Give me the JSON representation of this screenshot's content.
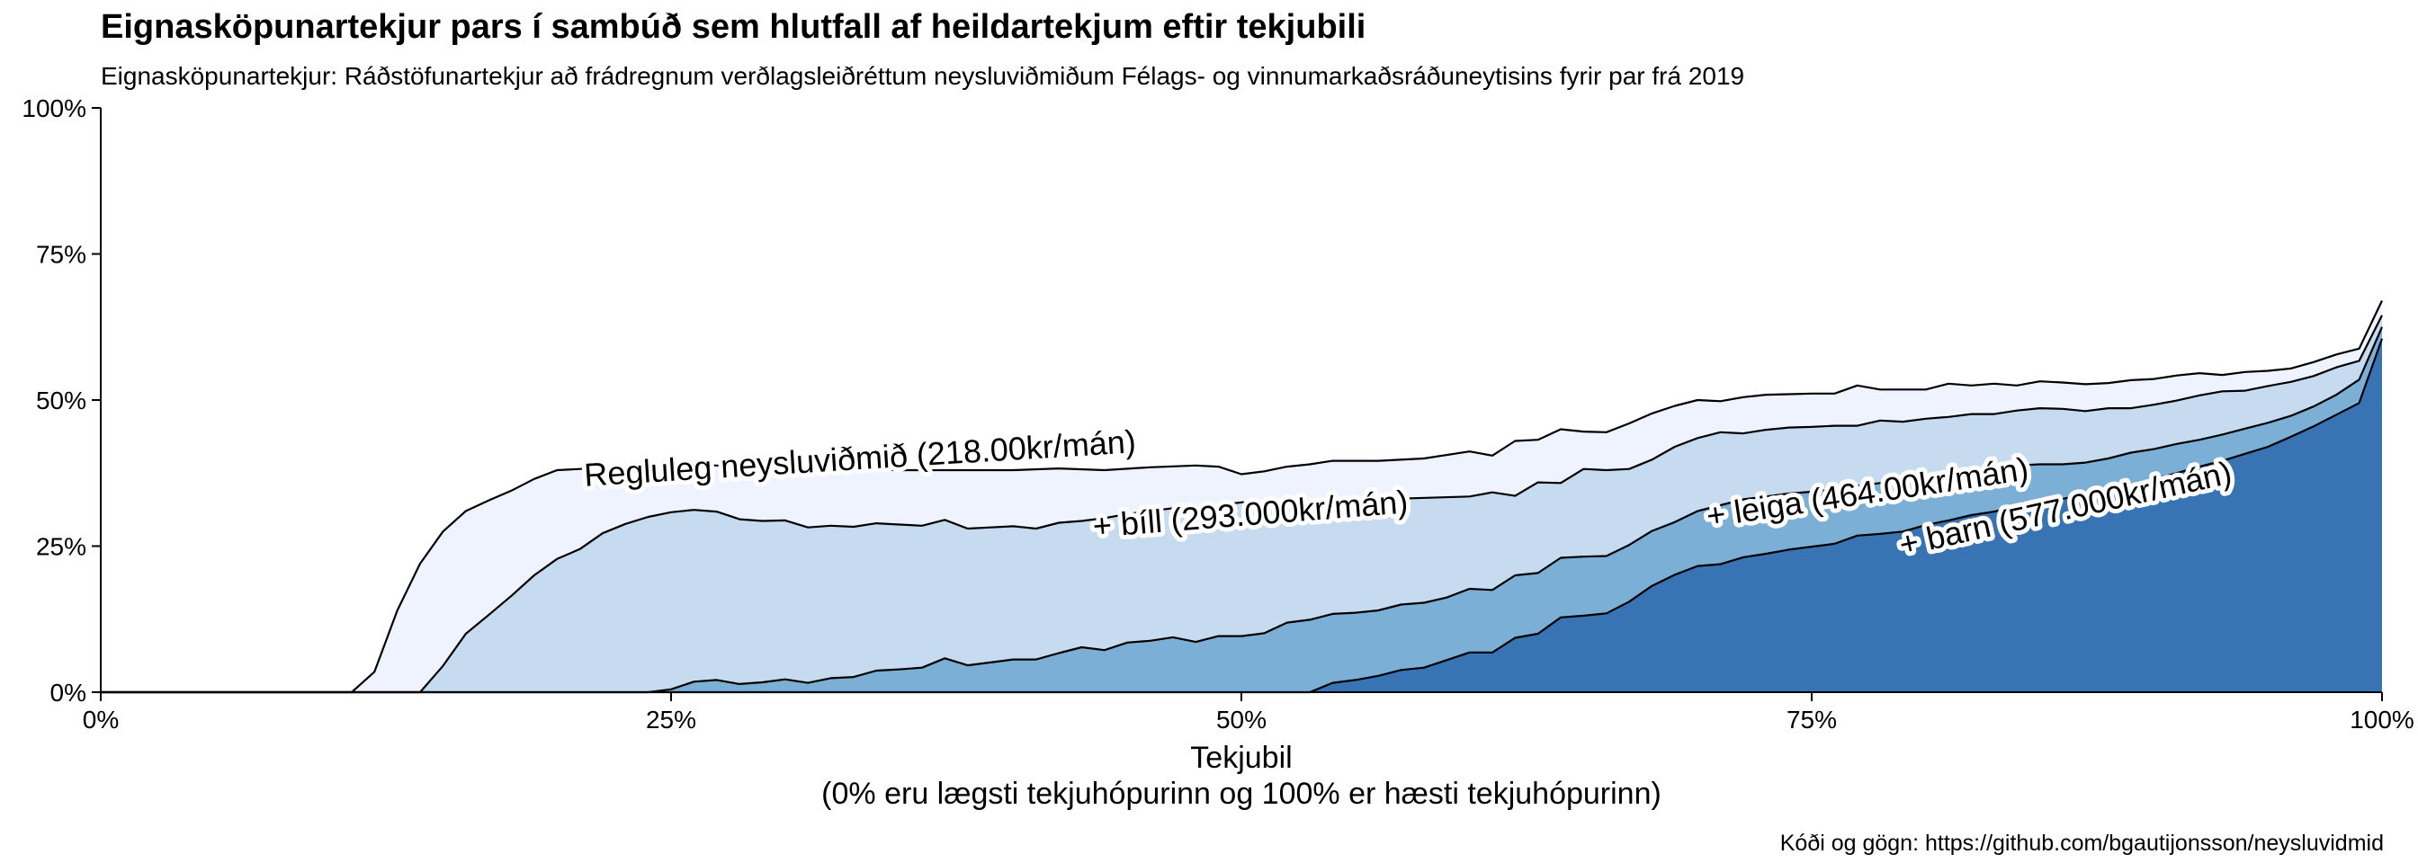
{
  "chart_data": {
    "type": "area",
    "title": "Eignasköpunartekjur pars í sambúð sem hlutfall af heildartekjum eftir tekjubili",
    "subtitle": "Eignasköpunartekjur: Ráðstöfunartekjur að frádregnum verðlagsleiðréttum neysluviðmiðum Félags- og vinnumarkaðsráðuneytisins fyrir par frá 2019",
    "xlabel": "Tekjubil",
    "xlabel_note": "(0% eru lægsti tekjuhópurinn og 100% er hæsti tekjuhópurinn)",
    "caption": "Kóði og gögn: https://github.com/bgautijonsson/neysluvidmid",
    "x_ticks": [
      "0%",
      "25%",
      "50%",
      "75%",
      "100%"
    ],
    "y_ticks": [
      "0%",
      "25%",
      "50%",
      "75%",
      "100%"
    ],
    "xlim": [
      0,
      100
    ],
    "ylim": [
      0,
      100
    ],
    "grid": false,
    "legend": "none",
    "series": [
      {
        "name": "Regluleg neysluviðmið (218.00kr/mán)",
        "color": "#eff3ff",
        "points": [
          [
            0,
            0
          ],
          [
            11,
            0
          ],
          [
            12,
            3.5
          ],
          [
            13,
            14
          ],
          [
            14,
            22
          ],
          [
            15,
            27.5
          ],
          [
            16,
            31
          ],
          [
            17,
            32.8
          ],
          [
            18,
            34.5
          ],
          [
            19,
            36.5
          ],
          [
            20,
            38
          ],
          [
            25,
            39
          ],
          [
            30,
            38.5
          ],
          [
            35,
            38
          ],
          [
            40,
            38
          ],
          [
            42,
            38.3
          ],
          [
            44,
            38
          ],
          [
            46,
            38.5
          ],
          [
            48,
            38.8
          ],
          [
            49,
            38.6
          ],
          [
            50,
            37.3
          ],
          [
            51,
            37.8
          ],
          [
            52,
            38.6
          ],
          [
            53,
            39
          ],
          [
            54,
            39.6
          ],
          [
            56,
            39.6
          ],
          [
            58,
            40
          ],
          [
            60,
            41.2
          ],
          [
            61,
            40.5
          ],
          [
            62,
            43
          ],
          [
            63,
            43.2
          ],
          [
            64,
            45
          ],
          [
            65,
            44.6
          ],
          [
            66,
            44.5
          ],
          [
            67,
            46
          ],
          [
            68,
            47.7
          ],
          [
            69,
            49
          ],
          [
            70,
            50
          ],
          [
            71,
            49.8
          ],
          [
            72,
            50.5
          ],
          [
            73,
            50.9
          ],
          [
            74,
            51
          ],
          [
            75,
            51.1
          ],
          [
            76,
            51.1
          ],
          [
            77,
            52.5
          ],
          [
            78,
            51.8
          ],
          [
            79,
            51.8
          ],
          [
            80,
            51.8
          ],
          [
            81,
            52.8
          ],
          [
            82,
            52.5
          ],
          [
            83,
            52.8
          ],
          [
            84,
            52.5
          ],
          [
            85,
            53.2
          ],
          [
            86,
            53
          ],
          [
            87,
            52.7
          ],
          [
            88,
            52.9
          ],
          [
            89,
            53.4
          ],
          [
            90,
            53.6
          ],
          [
            91,
            54.2
          ],
          [
            92,
            54.6
          ],
          [
            93,
            54.3
          ],
          [
            94,
            54.8
          ],
          [
            95,
            55
          ],
          [
            96,
            55.4
          ],
          [
            97,
            56.5
          ],
          [
            98,
            57.8
          ],
          [
            99,
            58.8
          ],
          [
            100,
            67
          ]
        ]
      },
      {
        "name": "+ bíll (293.000kr/mán)",
        "color": "#c6dbef",
        "points": [
          [
            0,
            0
          ],
          [
            14,
            0
          ],
          [
            15,
            4.5
          ],
          [
            16,
            10
          ],
          [
            17,
            13.2
          ],
          [
            18,
            16.5
          ],
          [
            19,
            20
          ],
          [
            20,
            22.8
          ],
          [
            21,
            24.5
          ],
          [
            22,
            27.2
          ],
          [
            23,
            28.8
          ],
          [
            24,
            30
          ],
          [
            25,
            30.8
          ],
          [
            26,
            31.2
          ],
          [
            27,
            30.9
          ],
          [
            28,
            29.6
          ],
          [
            29,
            29.3
          ],
          [
            30,
            29.4
          ],
          [
            31,
            28.2
          ],
          [
            32,
            28.5
          ],
          [
            33,
            28.3
          ],
          [
            34,
            28.9
          ],
          [
            35,
            28.7
          ],
          [
            36,
            28.5
          ],
          [
            37,
            29.5
          ],
          [
            38,
            28
          ],
          [
            39,
            28.2
          ],
          [
            40,
            28.4
          ],
          [
            41,
            28
          ],
          [
            42,
            29
          ],
          [
            43,
            29.3
          ],
          [
            44,
            29.8
          ],
          [
            45,
            30.5
          ],
          [
            46,
            31
          ],
          [
            47,
            31.5
          ],
          [
            48,
            31.8
          ],
          [
            49,
            32
          ],
          [
            50,
            32.5
          ],
          [
            55,
            32.9
          ],
          [
            60,
            33.5
          ],
          [
            61,
            34.2
          ],
          [
            62,
            33.6
          ],
          [
            63,
            35.9
          ],
          [
            64,
            35.8
          ],
          [
            65,
            38.2
          ],
          [
            66,
            38
          ],
          [
            67,
            38.2
          ],
          [
            68,
            39.8
          ],
          [
            69,
            42
          ],
          [
            70,
            43.5
          ],
          [
            71,
            44.5
          ],
          [
            72,
            44.3
          ],
          [
            73,
            44.9
          ],
          [
            74,
            45.3
          ],
          [
            75,
            45.4
          ],
          [
            76,
            45.6
          ],
          [
            77,
            45.6
          ],
          [
            78,
            46.5
          ],
          [
            79,
            46.3
          ],
          [
            80,
            46.8
          ],
          [
            81,
            47.1
          ],
          [
            82,
            47.6
          ],
          [
            83,
            47.6
          ],
          [
            84,
            48.2
          ],
          [
            85,
            48.6
          ],
          [
            86,
            48.5
          ],
          [
            87,
            48.1
          ],
          [
            88,
            48.6
          ],
          [
            89,
            48.6
          ],
          [
            90,
            49.2
          ],
          [
            91,
            49.9
          ],
          [
            92,
            50.8
          ],
          [
            93,
            51.5
          ],
          [
            94,
            51.6
          ],
          [
            95,
            52.4
          ],
          [
            96,
            53.1
          ],
          [
            97,
            54.1
          ],
          [
            98,
            55.6
          ],
          [
            99,
            56.7
          ],
          [
            100,
            64.5
          ]
        ]
      },
      {
        "name": "+ leiga (464.00kr/mán)",
        "color": "#7bafd6",
        "points": [
          [
            0,
            0
          ],
          [
            24,
            0
          ],
          [
            25,
            0.5
          ],
          [
            26,
            1.8
          ],
          [
            27,
            2.1
          ],
          [
            28,
            1.4
          ],
          [
            29,
            1.7
          ],
          [
            30,
            2.2
          ],
          [
            31,
            1.6
          ],
          [
            32,
            2.4
          ],
          [
            33,
            2.6
          ],
          [
            34,
            3.7
          ],
          [
            35,
            3.9
          ],
          [
            36,
            4.2
          ],
          [
            37,
            5.8
          ],
          [
            38,
            4.6
          ],
          [
            39,
            5.1
          ],
          [
            40,
            5.6
          ],
          [
            41,
            5.6
          ],
          [
            42,
            6.7
          ],
          [
            43,
            7.7
          ],
          [
            44,
            7.2
          ],
          [
            45,
            8.5
          ],
          [
            46,
            8.8
          ],
          [
            47,
            9.4
          ],
          [
            48,
            8.6
          ],
          [
            49,
            9.6
          ],
          [
            50,
            9.6
          ],
          [
            51,
            10.1
          ],
          [
            52,
            11.9
          ],
          [
            53,
            12.4
          ],
          [
            54,
            13.4
          ],
          [
            55,
            13.6
          ],
          [
            56,
            14
          ],
          [
            57,
            15
          ],
          [
            58,
            15.3
          ],
          [
            59,
            16.2
          ],
          [
            60,
            17.7
          ],
          [
            61,
            17.5
          ],
          [
            62,
            20
          ],
          [
            63,
            20.4
          ],
          [
            64,
            23
          ],
          [
            65,
            23.2
          ],
          [
            66,
            23.3
          ],
          [
            67,
            25.2
          ],
          [
            68,
            27.6
          ],
          [
            69,
            29.1
          ],
          [
            70,
            31
          ],
          [
            71,
            32
          ],
          [
            72,
            33
          ],
          [
            73,
            33.5
          ],
          [
            74,
            34
          ],
          [
            75,
            34.3
          ],
          [
            76,
            34.8
          ],
          [
            77,
            35.3
          ],
          [
            78,
            35.8
          ],
          [
            79,
            36.2
          ],
          [
            80,
            36.8
          ],
          [
            81,
            37.2
          ],
          [
            82,
            37.6
          ],
          [
            83,
            38.3
          ],
          [
            84,
            38.8
          ],
          [
            85,
            39
          ],
          [
            86,
            39
          ],
          [
            87,
            39.3
          ],
          [
            88,
            40
          ],
          [
            89,
            41
          ],
          [
            90,
            41.6
          ],
          [
            91,
            42.5
          ],
          [
            92,
            43.2
          ],
          [
            93,
            44.1
          ],
          [
            94,
            45.1
          ],
          [
            95,
            46.1
          ],
          [
            96,
            47.3
          ],
          [
            97,
            48.9
          ],
          [
            98,
            50.9
          ],
          [
            99,
            53.5
          ],
          [
            100,
            62.5
          ]
        ]
      },
      {
        "name": "+ barn (577.000kr/mán)",
        "color": "#3873b4",
        "points": [
          [
            0,
            0
          ],
          [
            53,
            0
          ],
          [
            54,
            1.6
          ],
          [
            55,
            2.1
          ],
          [
            56,
            2.8
          ],
          [
            57,
            3.8
          ],
          [
            58,
            4.2
          ],
          [
            59,
            5.5
          ],
          [
            60,
            6.8
          ],
          [
            61,
            6.8
          ],
          [
            62,
            9.3
          ],
          [
            63,
            10
          ],
          [
            64,
            12.8
          ],
          [
            65,
            13.1
          ],
          [
            66,
            13.5
          ],
          [
            67,
            15.5
          ],
          [
            68,
            18.2
          ],
          [
            69,
            20.1
          ],
          [
            70,
            21.6
          ],
          [
            71,
            21.9
          ],
          [
            72,
            23.1
          ],
          [
            73,
            23.7
          ],
          [
            74,
            24.4
          ],
          [
            75,
            24.9
          ],
          [
            76,
            25.4
          ],
          [
            77,
            26.8
          ],
          [
            78,
            27.1
          ],
          [
            79,
            27.5
          ],
          [
            80,
            28.6
          ],
          [
            81,
            29.4
          ],
          [
            82,
            30.3
          ],
          [
            83,
            30.9
          ],
          [
            84,
            31.8
          ],
          [
            85,
            32.4
          ],
          [
            86,
            33.1
          ],
          [
            87,
            33.9
          ],
          [
            88,
            34.6
          ],
          [
            89,
            35.4
          ],
          [
            90,
            36.4
          ],
          [
            91,
            37.5
          ],
          [
            92,
            38.6
          ],
          [
            93,
            39.6
          ],
          [
            94,
            40.8
          ],
          [
            95,
            42
          ],
          [
            96,
            43.7
          ],
          [
            97,
            45.5
          ],
          [
            98,
            47.5
          ],
          [
            99,
            49.5
          ],
          [
            100,
            60.5
          ]
        ]
      }
    ]
  }
}
